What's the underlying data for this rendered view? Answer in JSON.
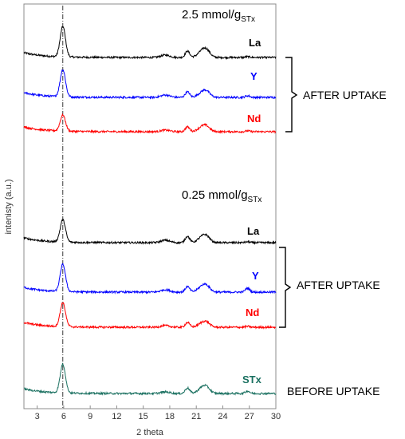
{
  "chart_data": {
    "type": "line",
    "xlabel": "2 theta",
    "ylabel": "intenisty (a.u.)",
    "xlim": [
      1.5,
      30
    ],
    "xticks": [
      3,
      6,
      9,
      12,
      15,
      18,
      21,
      24,
      27,
      30
    ],
    "reference_line_x": 5.9,
    "annotations": {
      "conc_high_main": "2.5 mmol/g",
      "conc_high_sub": "STx",
      "conc_low_main": "0.25 mmol/g",
      "conc_low_sub": "STx"
    },
    "groups": {
      "after_high": "AFTER UPTAKE",
      "after_low": "AFTER UPTAKE",
      "before": "BEFORE UPTAKE"
    },
    "peaks": [
      {
        "x": 5.9,
        "w": 0.3
      },
      {
        "x": 17.5,
        "w": 0.5
      },
      {
        "x": 20.0,
        "w": 0.25
      },
      {
        "x": 21.7,
        "w": 0.5
      },
      {
        "x": 22.2,
        "w": 0.4
      },
      {
        "x": 26.8,
        "w": 0.25
      }
    ],
    "series": [
      {
        "name": "La",
        "color": "#000000",
        "peak_heights": [
          38,
          3,
          8,
          8,
          6,
          1
        ]
      },
      {
        "name": "Y",
        "color": "#0000ff",
        "peak_heights": [
          34,
          3,
          7,
          6,
          5,
          2
        ]
      },
      {
        "name": "Nd",
        "color": "#ff0000",
        "peak_heights": [
          20,
          2,
          6,
          6,
          4,
          1
        ]
      },
      {
        "name": "La",
        "color": "#000000",
        "peak_heights": [
          28,
          3,
          8,
          7,
          5,
          1
        ]
      },
      {
        "name": "Y",
        "color": "#0000ff",
        "peak_heights": [
          34,
          3,
          7,
          7,
          5,
          5
        ]
      },
      {
        "name": "Nd",
        "color": "#ff0000",
        "peak_heights": [
          30,
          2,
          6,
          5,
          4,
          1
        ]
      },
      {
        "name": "STx",
        "color": "#1a7060",
        "peak_heights": [
          36,
          2,
          7,
          7,
          5,
          3
        ]
      }
    ]
  }
}
